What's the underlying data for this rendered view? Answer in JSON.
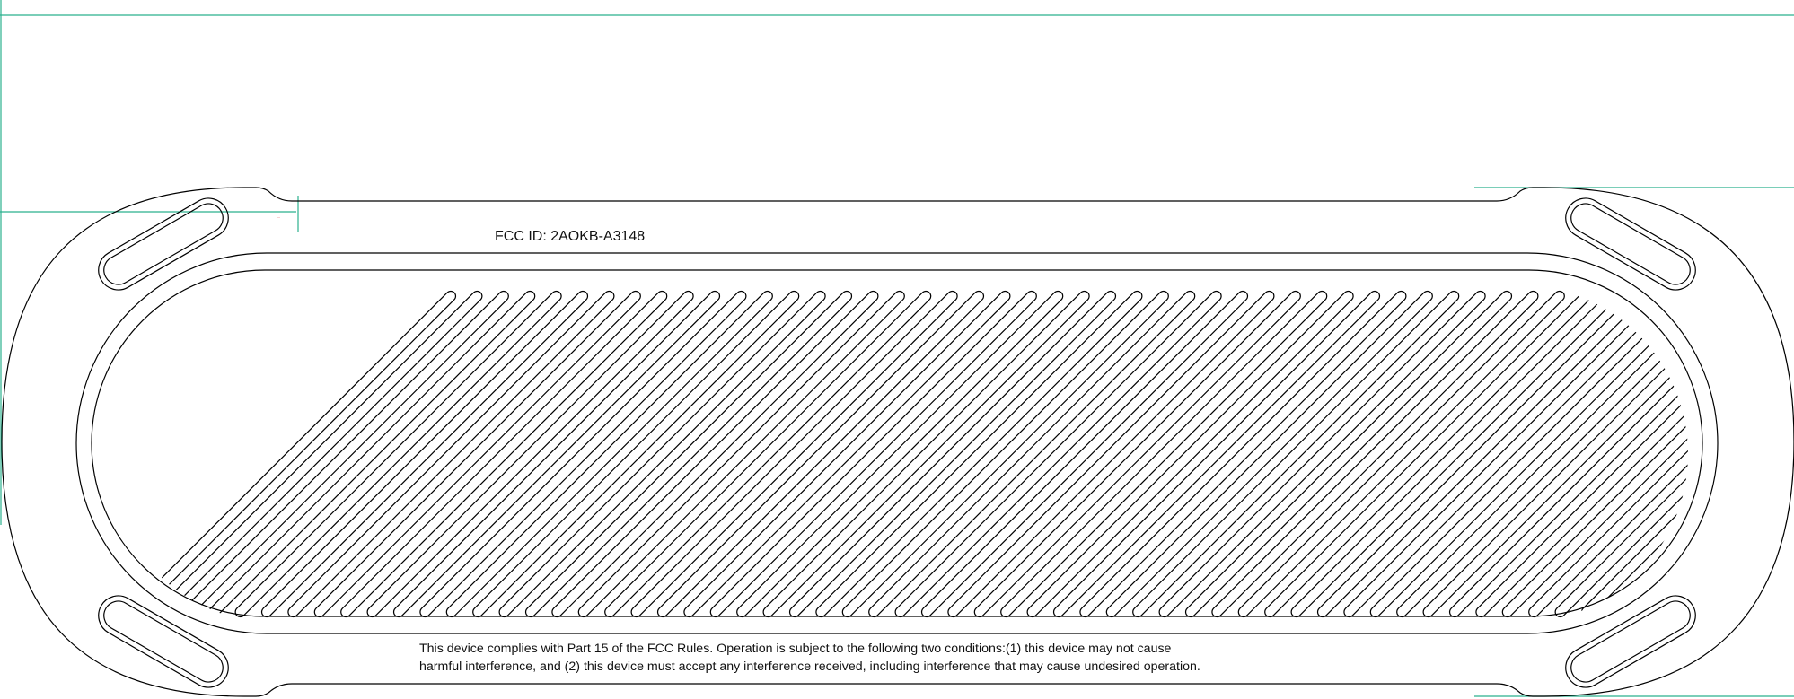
{
  "label": {
    "fcc_id": "FCC ID: 2AOKB-A3148",
    "compliance_line_1": "This device complies with Part 15 of the FCC Rules. Operation is subject to the following two conditions:(1) this device may not cause",
    "compliance_line_2": "harmful interference, and (2) this device must accept any interference received, including interference that may cause undesired operation."
  },
  "colors": {
    "outline": "#000000",
    "guide": "#2bb18e",
    "dimension_note": "#e05050"
  },
  "grille": {
    "slot_count": 60,
    "slot_angle_deg": 45
  }
}
